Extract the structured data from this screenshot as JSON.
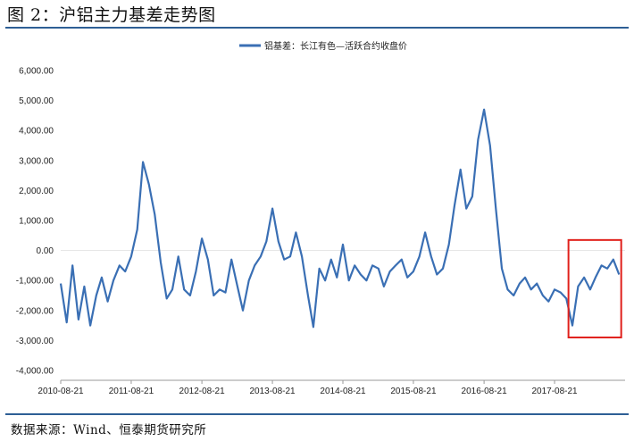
{
  "figure_title": "图 2：沪铝主力基差走势图",
  "source_note": "数据来源：Wind、恒泰期货研究所",
  "chart_data": {
    "type": "line",
    "title": "",
    "xlabel": "",
    "ylabel": "",
    "legend": {
      "placement": "top-center",
      "entries": [
        "铝基差：长江有色—活跃合约收盘价"
      ]
    },
    "ylim": [
      -4000,
      6000
    ],
    "yticks": [
      6000,
      5000,
      4000,
      3000,
      2000,
      1000,
      0,
      -1000,
      -2000,
      -3000,
      -4000
    ],
    "ytick_labels": [
      "6,000.00",
      "5,000.00",
      "4,000.00",
      "3,000.00",
      "2,000.00",
      "1,000.00",
      "0.00",
      "-1,000.00",
      "-2,000.00",
      "-3,000.00",
      "-4,000.00"
    ],
    "xlim": [
      "2010-08-21",
      "2018-08-21"
    ],
    "xtick_labels": [
      "2010-08-21",
      "2011-08-21",
      "2012-08-21",
      "2013-08-21",
      "2014-08-21",
      "2015-08-21",
      "2016-08-21",
      "2017-08-21"
    ],
    "grid": false,
    "series_color": "#3a6fb4",
    "highlight_box": {
      "color": "#e0201b",
      "x_start": "2017-11-01",
      "x_end": "2018-08-01",
      "y_min": -2900,
      "y_max": 350
    },
    "series": [
      {
        "name": "铝基差：长江有色—活跃合约收盘价",
        "x": [
          "2010-08-21",
          "2010-09-21",
          "2010-10-21",
          "2010-11-21",
          "2010-12-21",
          "2011-01-21",
          "2011-02-21",
          "2011-03-21",
          "2011-04-21",
          "2011-05-21",
          "2011-06-21",
          "2011-07-21",
          "2011-08-21",
          "2011-09-21",
          "2011-10-21",
          "2011-11-21",
          "2011-12-21",
          "2012-01-21",
          "2012-02-21",
          "2012-03-21",
          "2012-04-21",
          "2012-05-21",
          "2012-06-21",
          "2012-07-21",
          "2012-08-21",
          "2012-09-21",
          "2012-10-21",
          "2012-11-21",
          "2012-12-21",
          "2013-01-21",
          "2013-02-21",
          "2013-03-21",
          "2013-04-21",
          "2013-05-21",
          "2013-06-21",
          "2013-07-21",
          "2013-08-21",
          "2013-09-21",
          "2013-10-21",
          "2013-11-21",
          "2013-12-21",
          "2014-01-21",
          "2014-02-21",
          "2014-03-21",
          "2014-04-21",
          "2014-05-21",
          "2014-06-21",
          "2014-07-21",
          "2014-08-21",
          "2014-09-21",
          "2014-10-21",
          "2014-11-21",
          "2014-12-21",
          "2015-01-21",
          "2015-02-21",
          "2015-03-21",
          "2015-04-21",
          "2015-05-21",
          "2015-06-21",
          "2015-07-21",
          "2015-08-21",
          "2015-09-21",
          "2015-10-21",
          "2015-11-21",
          "2015-12-21",
          "2016-01-21",
          "2016-02-21",
          "2016-03-21",
          "2016-04-21",
          "2016-05-21",
          "2016-06-21",
          "2016-07-21",
          "2016-08-21",
          "2016-09-21",
          "2016-10-21",
          "2016-11-21",
          "2016-12-21",
          "2017-01-21",
          "2017-02-21",
          "2017-03-21",
          "2017-04-21",
          "2017-05-21",
          "2017-06-21",
          "2017-07-21",
          "2017-08-21",
          "2017-09-21",
          "2017-10-21",
          "2017-11-21",
          "2017-12-21",
          "2018-01-21",
          "2018-02-21",
          "2018-03-21",
          "2018-04-21",
          "2018-05-21",
          "2018-06-21",
          "2018-07-21"
        ],
        "values": [
          -1100,
          -2400,
          -500,
          -2300,
          -1200,
          -2500,
          -1500,
          -900,
          -1700,
          -1000,
          -500,
          -700,
          -200,
          700,
          2950,
          2200,
          1200,
          -400,
          -1600,
          -1300,
          -200,
          -1300,
          -1500,
          -700,
          400,
          -300,
          -1500,
          -1300,
          -1400,
          -300,
          -1200,
          -2000,
          -1000,
          -500,
          -200,
          300,
          1400,
          300,
          -300,
          -200,
          600,
          -200,
          -1500,
          -2550,
          -600,
          -1000,
          -300,
          -900,
          200,
          -1000,
          -500,
          -800,
          -1000,
          -500,
          -600,
          -1200,
          -700,
          -500,
          -300,
          -900,
          -700,
          -200,
          600,
          -200,
          -800,
          -600,
          200,
          1500,
          2700,
          1400,
          1800,
          3700,
          4700,
          3500,
          1400,
          -600,
          -1300,
          -1500,
          -1100,
          -900,
          -1300,
          -1100,
          -1500,
          -1700,
          -1300,
          -1400,
          -1600,
          -2500,
          -1200,
          -900,
          -1300,
          -900,
          -500,
          -600,
          -300,
          -800
        ]
      }
    ]
  }
}
